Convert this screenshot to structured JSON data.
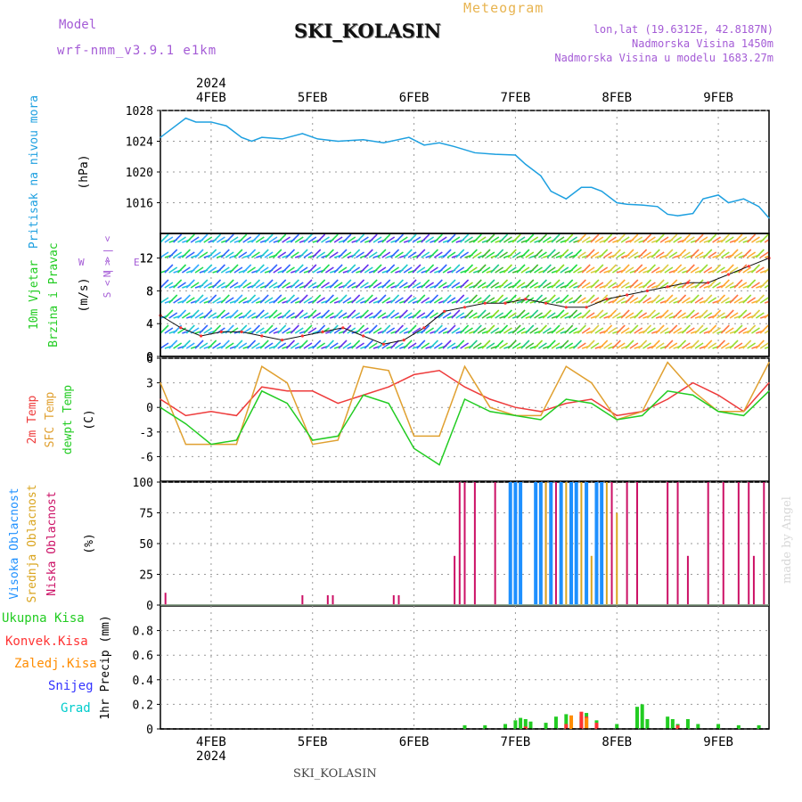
{
  "header": {
    "model_label": "Model",
    "model_name": "wrf-nmm_v3.9.1 e1km",
    "meteogram_title": "Meteogram",
    "station": "SKI_KOLASIN",
    "lonlat": "lon,lat (19.6312E, 42.8187N)",
    "elevation": "Nadmorska Visina 1450m",
    "model_elevation": "Nadmorska Visina u modelu 1683.27m"
  },
  "footer": {
    "station": "SKI_KOLASIN",
    "credit": "made by Angel"
  },
  "colors": {
    "pressure": "#1ea0e0",
    "temp2m": "#ee3b3b",
    "sfc_temp": "#e0a030",
    "dewpt": "#22cc22",
    "high_cloud": "#1e90ff",
    "mid_cloud": "#daa520",
    "low_cloud": "#cc1166",
    "total_precip": "#22cc22",
    "conv_precip": "#ff3333",
    "freezing_precip": "#ff8c00",
    "snow": "#3333ff",
    "graupel": "#00cccc"
  },
  "chart_data": [
    {
      "id": "time_axis",
      "type": "line",
      "x_unit": "day",
      "x_range": [
        "2024-02-03 12:00",
        "2024-02-09 12:00"
      ],
      "year_label": "2024",
      "ticks": [
        "4FEB",
        "5FEB",
        "6FEB",
        "7FEB",
        "8FEB",
        "9FEB"
      ],
      "grid": true
    },
    {
      "id": "pressure",
      "type": "line",
      "ylabel": "Pritisak na nivou mora",
      "yunit": "(hPa)",
      "ylim": [
        1012,
        1028
      ],
      "yticks": [
        1016,
        1020,
        1024,
        1028
      ],
      "x": [
        0,
        0.1,
        0.25,
        0.35,
        0.5,
        0.65,
        0.8,
        0.9,
        1.0,
        1.2,
        1.4,
        1.55,
        1.75,
        2.0,
        2.2,
        2.45,
        2.6,
        2.75,
        2.9,
        3.1,
        3.3,
        3.5,
        3.6,
        3.75,
        3.85,
        4.0,
        4.15,
        4.25,
        4.35,
        4.5,
        4.6,
        4.75,
        4.9,
        5.0,
        5.1,
        5.25,
        5.35,
        5.5,
        5.6,
        5.75,
        5.9,
        6.0
      ],
      "values": [
        1024.5,
        1025.5,
        1027,
        1026.5,
        1026.5,
        1026,
        1024.5,
        1024,
        1024.5,
        1024.3,
        1025,
        1024.3,
        1024,
        1024.2,
        1023.8,
        1024.5,
        1023.5,
        1023.8,
        1023.3,
        1022.5,
        1022.3,
        1022.2,
        1021,
        1019.5,
        1017.5,
        1016.5,
        1018,
        1018,
        1017.5,
        1016,
        1015.8,
        1015.7,
        1015.5,
        1014.5,
        1014.3,
        1014.6,
        1016.5,
        1017,
        1016,
        1016.5,
        1015.5,
        1014
      ]
    },
    {
      "id": "wind",
      "type": "line",
      "ylabel": "10m Vjetar",
      "ylabel2": "Brzina i Pravac",
      "yunit": "(m/s)",
      "ylim": [
        0,
        15
      ],
      "yticks": [
        0,
        4,
        8,
        12
      ],
      "direction_legend": [
        "N",
        "W",
        "E",
        "S"
      ],
      "x": [
        0,
        0.2,
        0.4,
        0.6,
        0.8,
        1.0,
        1.2,
        1.4,
        1.6,
        1.8,
        2.0,
        2.2,
        2.4,
        2.6,
        2.8,
        3.0,
        3.2,
        3.4,
        3.6,
        3.8,
        4.0,
        4.2,
        4.4,
        4.6,
        4.8,
        5.0,
        5.2,
        5.4,
        5.6,
        5.8,
        6.0
      ],
      "values": [
        5,
        3.5,
        2.5,
        3,
        3,
        2.5,
        2,
        2.5,
        3,
        3.5,
        2.5,
        1.5,
        2,
        3.5,
        5.5,
        6,
        6.5,
        6.5,
        7,
        6.5,
        6,
        6,
        7,
        7.5,
        8,
        8.5,
        9,
        9,
        10,
        11,
        12
      ]
    },
    {
      "id": "temperature",
      "type": "line",
      "ylabel": "2m Temp",
      "ylabel2": "SFC Temp",
      "ylabel3": "dewpt Temp",
      "yunit": "(C)",
      "ylim": [
        -9,
        6
      ],
      "yticks": [
        -6,
        -3,
        0,
        3,
        6
      ],
      "x": [
        0,
        0.25,
        0.5,
        0.75,
        1.0,
        1.25,
        1.5,
        1.75,
        2.0,
        2.25,
        2.5,
        2.75,
        3.0,
        3.25,
        3.5,
        3.75,
        4.0,
        4.25,
        4.5,
        4.75,
        5.0,
        5.25,
        5.5,
        5.75,
        6.0
      ],
      "series": [
        {
          "name": "2m Temp",
          "values": [
            1,
            -1,
            -0.5,
            -1,
            2.5,
            2,
            2,
            0.5,
            1.5,
            2.5,
            4,
            4.5,
            2.5,
            1,
            0,
            -0.5,
            0.5,
            1,
            -1,
            -0.5,
            1,
            3,
            1.5,
            -0.5,
            3
          ]
        },
        {
          "name": "SFC Temp",
          "values": [
            3,
            -4.5,
            -4.5,
            -4.5,
            5,
            3,
            -4.5,
            -4,
            5,
            4.5,
            -3.5,
            -3.5,
            5,
            0,
            -1,
            -1,
            5,
            3,
            -1.5,
            -0.5,
            5.5,
            2,
            -0.5,
            -0.5,
            5.5
          ]
        },
        {
          "name": "dewpt Temp",
          "values": [
            0,
            -2,
            -4.5,
            -4,
            2,
            0.5,
            -4,
            -3.5,
            1.5,
            0.5,
            -5,
            -7,
            1,
            -0.5,
            -1,
            -1.5,
            1,
            0.5,
            -1.5,
            -1,
            2,
            1.5,
            -0.5,
            -1,
            2
          ]
        }
      ]
    },
    {
      "id": "clouds",
      "type": "bar",
      "ylabel": "Visoka Oblacnost",
      "ylabel2": "Srednja Oblacnost",
      "ylabel3": "Niska Oblacnost",
      "yunit": "(%)",
      "ylim": [
        0,
        100
      ],
      "yticks": [
        0,
        25,
        50,
        75,
        100
      ],
      "series": [
        {
          "name": "Niska Oblacnost",
          "x": [
            0.05,
            1.4,
            1.65,
            1.7,
            2.3,
            2.35,
            2.9,
            2.95,
            3.0,
            3.1,
            3.3,
            3.45,
            3.5,
            3.8,
            3.9,
            4.3,
            4.45,
            4.6,
            4.7,
            5.0,
            5.1,
            5.2,
            5.4,
            5.55,
            5.7,
            5.8,
            5.85,
            5.95
          ],
          "values": [
            10,
            8,
            8,
            8,
            8,
            8,
            40,
            100,
            100,
            100,
            100,
            100,
            100,
            100,
            100,
            100,
            100,
            100,
            100,
            100,
            100,
            40,
            100,
            100,
            100,
            100,
            40,
            100
          ]
        },
        {
          "name": "Srednja Oblacnost",
          "x": [
            3.8,
            3.85,
            3.95,
            4.0,
            4.05,
            4.1,
            4.15,
            4.25,
            4.4,
            4.5
          ],
          "values": [
            100,
            100,
            100,
            100,
            100,
            100,
            100,
            40,
            100,
            75
          ]
        },
        {
          "name": "Visoka Oblacnost",
          "x": [
            3.45,
            3.5,
            3.55,
            3.7,
            3.75,
            3.85,
            3.95,
            4.05,
            4.1,
            4.2,
            4.3,
            4.35
          ],
          "values": [
            100,
            100,
            100,
            100,
            100,
            100,
            100,
            100,
            100,
            100,
            100,
            100
          ]
        }
      ]
    },
    {
      "id": "precip",
      "type": "bar",
      "ylabel": "1hr Precip",
      "yunit": "(mm)",
      "ylim": [
        0,
        1.0
      ],
      "yticks": [
        0,
        0.2,
        0.4,
        0.6,
        0.8
      ],
      "legend": [
        "Ukupna Kisa",
        "Konvek.Kisa",
        "Zaledj.Kisa",
        "Snijeg",
        "Grad"
      ],
      "series": [
        {
          "name": "Ukupna Kisa",
          "x": [
            3.0,
            3.2,
            3.4,
            3.5,
            3.55,
            3.6,
            3.65,
            3.8,
            3.9,
            4.0,
            4.05,
            4.15,
            4.2,
            4.3,
            4.5,
            4.7,
            4.75,
            4.8,
            5.0,
            5.05,
            5.1,
            5.2,
            5.3,
            5.5,
            5.7,
            5.9
          ],
          "values": [
            0.03,
            0.03,
            0.04,
            0.07,
            0.09,
            0.08,
            0.06,
            0.05,
            0.1,
            0.12,
            0.07,
            0.1,
            0.13,
            0.07,
            0.04,
            0.18,
            0.2,
            0.08,
            0.1,
            0.08,
            0.04,
            0.08,
            0.04,
            0.04,
            0.03,
            0.03
          ]
        },
        {
          "name": "Konvek.Kisa",
          "x": [
            3.6,
            4.0,
            4.15,
            4.2,
            4.3,
            5.1
          ],
          "values": [
            0.02,
            0.04,
            0.14,
            0.1,
            0.05,
            0.03
          ]
        },
        {
          "name": "Zaledj.Kisa",
          "x": [
            4.05,
            4.2
          ],
          "values": [
            0.11,
            0.09
          ]
        }
      ]
    }
  ]
}
